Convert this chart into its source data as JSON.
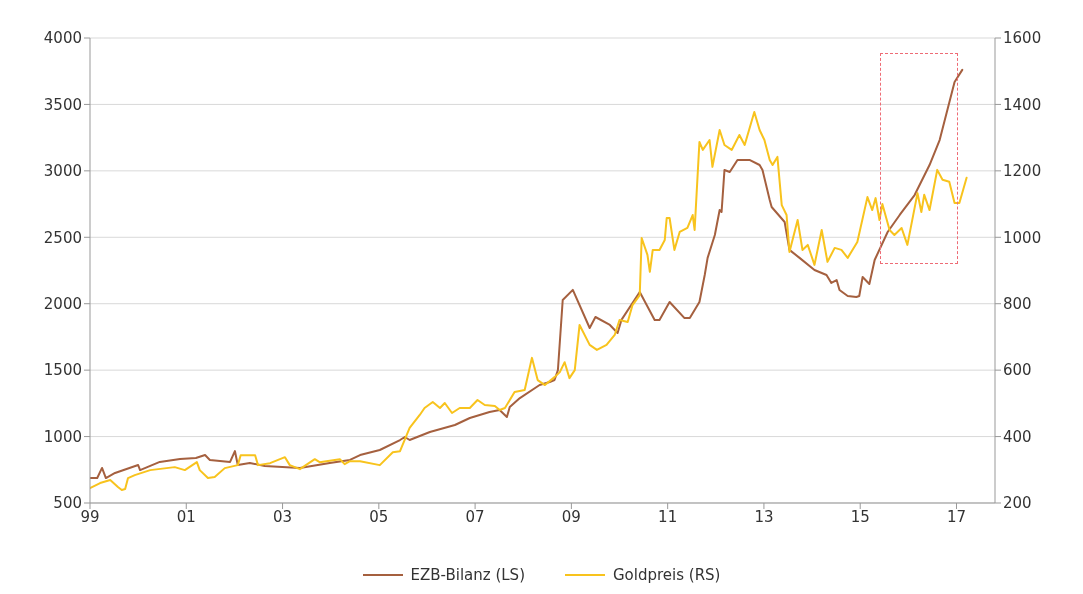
{
  "chart_data": {
    "type": "line",
    "xlim": [
      1999,
      2017.8
    ],
    "xticks": [
      {
        "value": 1999,
        "label": "99"
      },
      {
        "value": 2001,
        "label": "01"
      },
      {
        "value": 2003,
        "label": "03"
      },
      {
        "value": 2005,
        "label": "05"
      },
      {
        "value": 2007,
        "label": "07"
      },
      {
        "value": 2009,
        "label": "09"
      },
      {
        "value": 2011,
        "label": "11"
      },
      {
        "value": 2013,
        "label": "13"
      },
      {
        "value": 2015,
        "label": "15"
      },
      {
        "value": 2017,
        "label": "17"
      }
    ],
    "ylim": [
      500,
      4000
    ],
    "yticks": [
      500,
      1000,
      1500,
      2000,
      2500,
      3000,
      3500,
      4000
    ],
    "y2lim": [
      200,
      1600
    ],
    "y2ticks": [
      200,
      400,
      600,
      800,
      1000,
      1200,
      1400,
      1600
    ],
    "grid": "y",
    "legend": "bottom",
    "marker": "none",
    "line_style": "solid",
    "series": [
      {
        "name": "EZB-Bilanz (LS)",
        "color": "#a5603f",
        "x": [
          1999.0,
          1999.15,
          1999.25,
          1999.33,
          1999.52,
          2000.0,
          2000.04,
          2000.45,
          2000.87,
          2001.2,
          2001.39,
          2001.49,
          2001.91,
          2002.01,
          2002.07,
          2002.32,
          2002.63,
          2003.36,
          2003.98,
          2004.4,
          2004.61,
          2005.02,
          2005.44,
          2005.54,
          2005.64,
          2006.06,
          2006.58,
          2006.89,
          2007.3,
          2007.51,
          2007.66,
          2007.72,
          2007.93,
          2008.34,
          2008.55,
          2008.65,
          2008.72,
          2008.82,
          2009.03,
          2009.38,
          2009.5,
          2009.8,
          2009.96,
          2010.04,
          2010.42,
          2010.73,
          2010.83,
          2011.04,
          2011.35,
          2011.46,
          2011.66,
          2011.77,
          2011.83,
          2011.98,
          2012.08,
          2012.12,
          2012.18,
          2012.29,
          2012.45,
          2012.7,
          2012.91,
          2012.97,
          2013.12,
          2013.16,
          2013.43,
          2013.53,
          2013.74,
          2014.05,
          2014.3,
          2014.4,
          2014.51,
          2014.57,
          2014.74,
          2014.92,
          2014.98,
          2015.05,
          2015.19,
          2015.3,
          2015.57,
          2015.82,
          2016.13,
          2016.44,
          2016.65,
          2016.96,
          2017.12
        ],
        "values": [
          688,
          688,
          764,
          688,
          726,
          786,
          748,
          809,
          831,
          839,
          861,
          824,
          809,
          891,
          786,
          801,
          779,
          763,
          801,
          824,
          861,
          899,
          974,
          997,
          974,
          1034,
          1087,
          1140,
          1185,
          1200,
          1147,
          1223,
          1290,
          1388,
          1411,
          1426,
          1500,
          2028,
          2104,
          1817,
          1900,
          1840,
          1780,
          1878,
          2088,
          1878,
          1878,
          2013,
          1892,
          1892,
          2013,
          2216,
          2345,
          2517,
          2705,
          2690,
          3006,
          2991,
          3082,
          3082,
          3044,
          3006,
          2781,
          2728,
          2615,
          2405,
          2345,
          2254,
          2216,
          2156,
          2178,
          2103,
          2058,
          2051,
          2058,
          2201,
          2148,
          2329,
          2540,
          2668,
          2818,
          3044,
          3232,
          3669,
          3760
        ]
      },
      {
        "name": "Goldpreis (RS)",
        "color": "#f8c31d",
        "axis": "y2",
        "x": [
          1999.0,
          1999.21,
          1999.42,
          1999.58,
          1999.66,
          1999.73,
          1999.79,
          1999.93,
          2000.25,
          2000.76,
          2000.97,
          2001.22,
          2001.28,
          2001.45,
          2001.59,
          2001.8,
          2002.07,
          2002.13,
          2002.43,
          2002.49,
          2002.74,
          2003.05,
          2003.15,
          2003.36,
          2003.67,
          2003.77,
          2004.19,
          2004.29,
          2004.4,
          2004.61,
          2005.02,
          2005.29,
          2005.44,
          2005.64,
          2005.85,
          2005.95,
          2006.12,
          2006.27,
          2006.37,
          2006.52,
          2006.68,
          2006.89,
          2007.05,
          2007.2,
          2007.41,
          2007.51,
          2007.62,
          2007.82,
          2008.03,
          2008.18,
          2008.3,
          2008.45,
          2008.65,
          2008.76,
          2008.86,
          2008.96,
          2009.07,
          2009.17,
          2009.38,
          2009.53,
          2009.73,
          2009.9,
          2010.0,
          2010.17,
          2010.27,
          2010.42,
          2010.46,
          2010.58,
          2010.63,
          2010.69,
          2010.83,
          2010.94,
          2010.98,
          2011.04,
          2011.14,
          2011.25,
          2011.41,
          2011.52,
          2011.56,
          2011.66,
          2011.73,
          2011.87,
          2011.93,
          2012.08,
          2012.18,
          2012.33,
          2012.49,
          2012.6,
          2012.8,
          2012.91,
          2013.01,
          2013.12,
          2013.18,
          2013.28,
          2013.37,
          2013.47,
          2013.53,
          2013.7,
          2013.8,
          2013.91,
          2014.05,
          2014.2,
          2014.32,
          2014.47,
          2014.61,
          2014.74,
          2014.94,
          2015.15,
          2015.25,
          2015.32,
          2015.4,
          2015.46,
          2015.61,
          2015.71,
          2015.86,
          2015.98,
          2016.19,
          2016.27,
          2016.33,
          2016.44,
          2016.6,
          2016.71,
          2016.85,
          2016.96,
          2017.06,
          2017.21
        ],
        "values": [
          245,
          260,
          269,
          248,
          239,
          242,
          275,
          284,
          299,
          308,
          299,
          323,
          299,
          275,
          278,
          305,
          314,
          344,
          344,
          314,
          320,
          338,
          314,
          302,
          332,
          323,
          332,
          317,
          326,
          326,
          314,
          353,
          356,
          426,
          465,
          486,
          504,
          486,
          501,
          471,
          486,
          486,
          510,
          495,
          492,
          480,
          486,
          534,
          540,
          637,
          570,
          555,
          579,
          594,
          624,
          576,
          600,
          736,
          676,
          661,
          676,
          706,
          751,
          745,
          796,
          826,
          998,
          947,
          896,
          962,
          962,
          992,
          1058,
          1058,
          962,
          1016,
          1028,
          1067,
          1022,
          1287,
          1263,
          1293,
          1212,
          1323,
          1278,
          1263,
          1308,
          1278,
          1377,
          1323,
          1293,
          1233,
          1218,
          1242,
          1097,
          1067,
          956,
          1052,
          962,
          977,
          917,
          1022,
          926,
          968,
          962,
          938,
          986,
          1121,
          1082,
          1118,
          1052,
          1100,
          1022,
          1007,
          1028,
          977,
          1133,
          1076,
          1128,
          1082,
          1203,
          1173,
          1167,
          1103,
          1103,
          1179
        ]
      }
    ]
  }
}
